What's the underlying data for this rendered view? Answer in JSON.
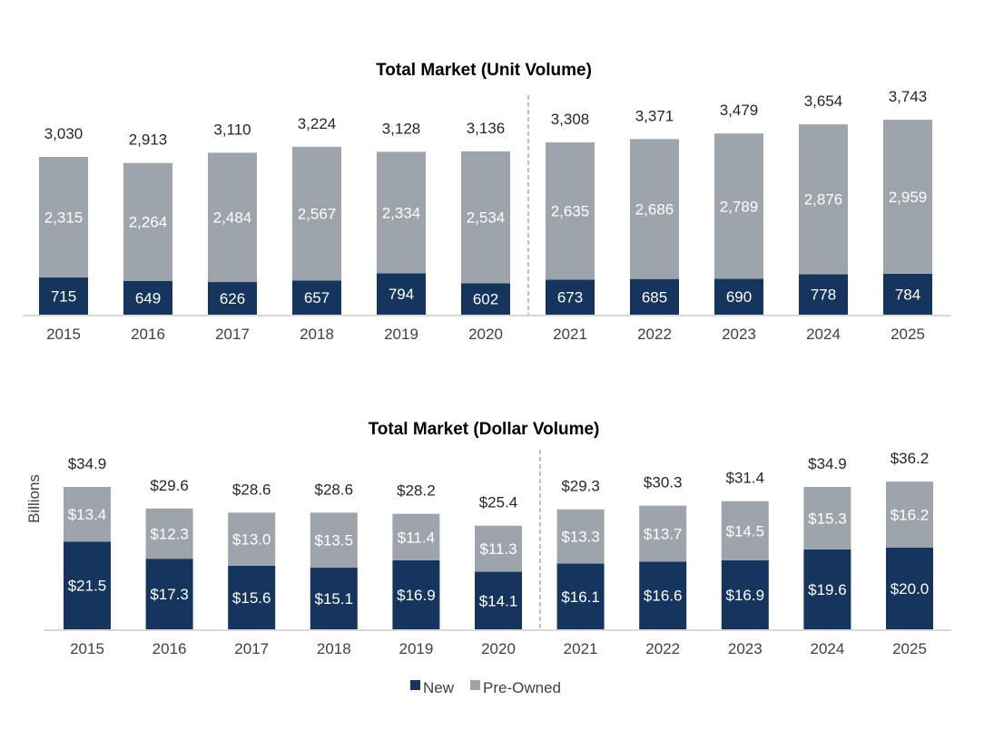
{
  "colors": {
    "new": "#15355f",
    "pre_owned": "#9ea4ab"
  },
  "legend": [
    {
      "key": "new",
      "label": "New"
    },
    {
      "key": "pre_owned",
      "label": "Pre-Owned"
    }
  ],
  "chart_data": [
    {
      "type": "bar",
      "stacked": true,
      "title": "Total Market (Unit Volume)",
      "ylabel": "",
      "categories": [
        "2015",
        "2016",
        "2017",
        "2018",
        "2019",
        "2020",
        "2021",
        "2022",
        "2023",
        "2024",
        "2025"
      ],
      "series": [
        {
          "name": "New",
          "values": [
            715,
            649,
            626,
            657,
            794,
            602,
            673,
            685,
            690,
            778,
            784
          ],
          "labels": [
            "715",
            "649",
            "626",
            "657",
            "794",
            "602",
            "673",
            "685",
            "690",
            "778",
            "784"
          ]
        },
        {
          "name": "Pre-Owned",
          "values": [
            2315,
            2264,
            2484,
            2567,
            2334,
            2534,
            2635,
            2686,
            2789,
            2876,
            2959
          ],
          "labels": [
            "2,315",
            "2,264",
            "2,484",
            "2,567",
            "2,334",
            "2,534",
            "2,635",
            "2,686",
            "2,789",
            "2,876",
            "2,959"
          ]
        }
      ],
      "totals": [
        "3,030",
        "2,913",
        "3,110",
        "3,224",
        "3,128",
        "3,136",
        "3,308",
        "3,371",
        "3,479",
        "3,654",
        "3,743"
      ],
      "forecast_divider_after": "2020",
      "grid": false
    },
    {
      "type": "bar",
      "stacked": true,
      "title": "Total Market (Dollar Volume)",
      "ylabel": "Billions",
      "categories": [
        "2015",
        "2016",
        "2017",
        "2018",
        "2019",
        "2020",
        "2021",
        "2022",
        "2023",
        "2024",
        "2025"
      ],
      "series": [
        {
          "name": "New",
          "values": [
            21.5,
            17.3,
            15.6,
            15.1,
            16.9,
            14.1,
            16.1,
            16.6,
            16.9,
            19.6,
            20.0
          ],
          "labels": [
            "$21.5",
            "$17.3",
            "$15.6",
            "$15.1",
            "$16.9",
            "$14.1",
            "$16.1",
            "$16.6",
            "$16.9",
            "$19.6",
            "$20.0"
          ]
        },
        {
          "name": "Pre-Owned",
          "values": [
            13.4,
            12.3,
            13.0,
            13.5,
            11.4,
            11.3,
            13.3,
            13.7,
            14.5,
            15.3,
            16.2
          ],
          "labels": [
            "$13.4",
            "$12.3",
            "$13.0",
            "$13.5",
            "$11.4",
            "$11.3",
            "$13.3",
            "$13.7",
            "$14.5",
            "$15.3",
            "$16.2"
          ]
        }
      ],
      "totals": [
        "$34.9",
        "$29.6",
        "$28.6",
        "$28.6",
        "$28.2",
        "$25.4",
        "$29.3",
        "$30.3",
        "$31.4",
        "$34.9",
        "$36.2"
      ],
      "forecast_divider_after": "2020",
      "grid": false
    }
  ]
}
